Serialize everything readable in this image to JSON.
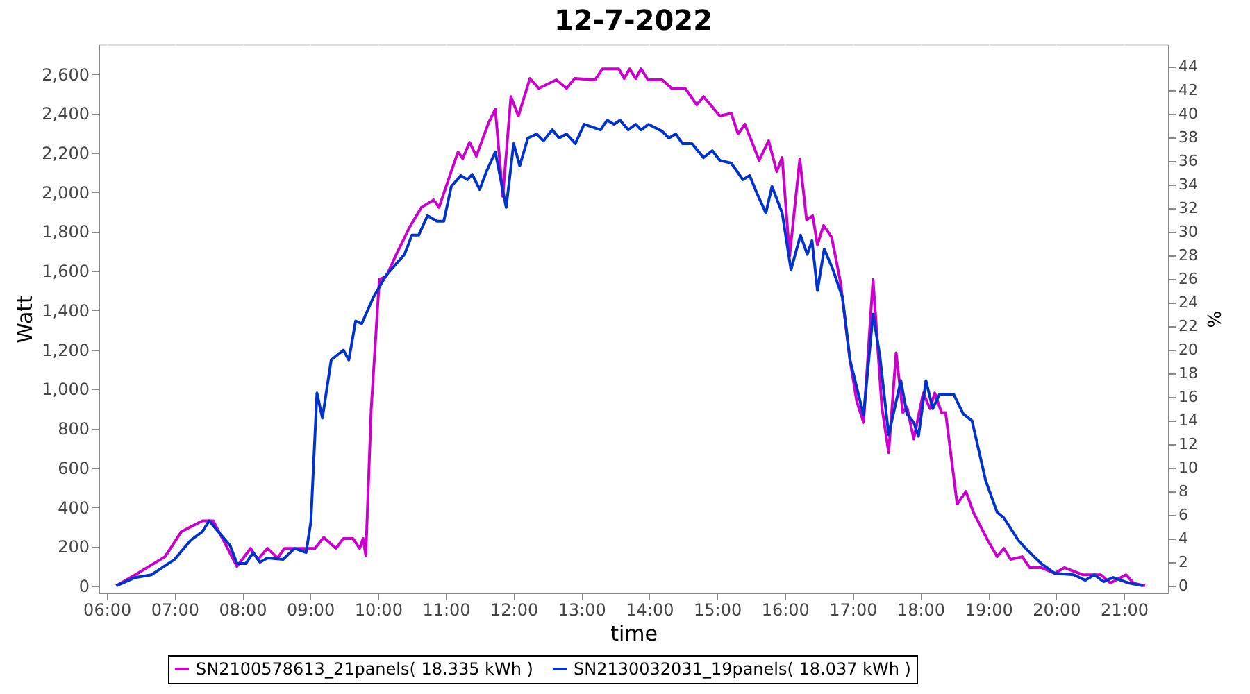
{
  "chart_data": {
    "type": "line",
    "title": "12-7-2022",
    "xlabel": "time",
    "ylabel": "Watt",
    "y2label": "%",
    "xlim": [
      5.88,
      21.65
    ],
    "xticks": [
      {
        "value": 6,
        "label": "06:00"
      },
      {
        "value": 7,
        "label": "07:00"
      },
      {
        "value": 8,
        "label": "08:00"
      },
      {
        "value": 9,
        "label": "09:00"
      },
      {
        "value": 10,
        "label": "10:00"
      },
      {
        "value": 11,
        "label": "11:00"
      },
      {
        "value": 12,
        "label": "12:00"
      },
      {
        "value": 13,
        "label": "13:00"
      },
      {
        "value": 14,
        "label": "14:00"
      },
      {
        "value": 15,
        "label": "15:00"
      },
      {
        "value": 16,
        "label": "16:00"
      },
      {
        "value": 17,
        "label": "17:00"
      },
      {
        "value": 18,
        "label": "18:00"
      },
      {
        "value": 19,
        "label": "19:00"
      },
      {
        "value": 20,
        "label": "20:00"
      },
      {
        "value": 21,
        "label": "21:00"
      }
    ],
    "ylim": [
      -35,
      2750
    ],
    "yticks": [
      0,
      200,
      400,
      600,
      800,
      {
        "value": 1000,
        "label": "1,000"
      },
      {
        "value": 1200,
        "label": "1,200"
      },
      {
        "value": 1400,
        "label": "1,400"
      },
      {
        "value": 1600,
        "label": "1,600"
      },
      {
        "value": 1800,
        "label": "1,800"
      },
      {
        "value": 2000,
        "label": "2,000"
      },
      {
        "value": 2200,
        "label": "2,200"
      },
      {
        "value": 2400,
        "label": "2,400"
      },
      {
        "value": 2600,
        "label": "2,600"
      }
    ],
    "y2lim": [
      -0.6,
      45.9
    ],
    "y2ticks": [
      0,
      2,
      4,
      6,
      8,
      10,
      12,
      14,
      16,
      18,
      20,
      22,
      24,
      26,
      28,
      30,
      32,
      34,
      36,
      38,
      40,
      42,
      44
    ],
    "grid": true,
    "legend": "bottom",
    "marker": "none",
    "line_style": "solid",
    "series": [
      {
        "name": "SN2100578613_21panels( 18.335 kWh )",
        "color": "#cc00cc",
        "x": [
          6.14,
          6.42,
          6.86,
          7.1,
          7.41,
          7.57,
          7.92,
          8.12,
          8.23,
          8.37,
          8.52,
          8.62,
          9.07,
          9.2,
          9.38,
          9.49,
          9.63,
          9.73,
          9.78,
          9.82,
          9.9,
          10.02,
          10.12,
          10.27,
          10.47,
          10.64,
          10.82,
          10.9,
          11.08,
          11.18,
          11.25,
          11.35,
          11.45,
          11.63,
          11.73,
          11.84,
          11.96,
          12.07,
          12.24,
          12.37,
          12.63,
          12.78,
          12.9,
          13.2,
          13.31,
          13.55,
          13.63,
          13.71,
          13.8,
          13.88,
          13.98,
          14.19,
          14.33,
          14.53,
          14.7,
          14.8,
          15.04,
          15.21,
          15.31,
          15.41,
          15.62,
          15.76,
          15.88,
          15.96,
          16.07,
          16.22,
          16.32,
          16.41,
          16.48,
          16.57,
          16.69,
          16.82,
          16.92,
          16.96,
          17.06,
          17.16,
          17.3,
          17.43,
          17.53,
          17.64,
          17.74,
          17.8,
          17.9,
          18.04,
          18.14,
          18.21,
          18.31,
          18.37,
          18.54,
          18.67,
          18.78,
          18.99,
          19.13,
          19.23,
          19.33,
          19.5,
          19.61,
          19.78,
          19.98,
          20.12,
          20.39,
          20.66,
          20.8,
          21.03,
          21.14,
          21.31
        ],
        "values": [
          0,
          56,
          148,
          275,
          330,
          330,
          99,
          190,
          134,
          190,
          141,
          190,
          190,
          246,
          190,
          240,
          240,
          190,
          240,
          155,
          900,
          1556,
          1570,
          1683,
          1824,
          1922,
          1960,
          1922,
          2105,
          2204,
          2170,
          2253,
          2182,
          2351,
          2422,
          1978,
          2485,
          2387,
          2577,
          2527,
          2570,
          2527,
          2577,
          2570,
          2626,
          2626,
          2577,
          2626,
          2577,
          2626,
          2570,
          2570,
          2527,
          2527,
          2443,
          2485,
          2387,
          2400,
          2295,
          2345,
          2161,
          2260,
          2105,
          2175,
          1675,
          2168,
          1859,
          1880,
          1732,
          1830,
          1770,
          1542,
          1260,
          1147,
          936,
          830,
          1556,
          908,
          676,
          1183,
          880,
          908,
          746,
          979,
          900,
          979,
          880,
          880,
          415,
          479,
          373,
          232,
          148,
          190,
          134,
          148,
          92,
          92,
          63,
          92,
          56,
          56,
          14,
          56,
          14,
          0
        ]
      },
      {
        "name": "SN2130032031_19panels( 18.037 kWh )",
        "color": "#0033cc",
        "x": [
          6.14,
          6.42,
          6.66,
          7.0,
          7.24,
          7.41,
          7.51,
          7.82,
          7.92,
          8.05,
          8.16,
          8.26,
          8.37,
          8.6,
          8.77,
          8.94,
          9.01,
          9.1,
          9.18,
          9.31,
          9.49,
          9.57,
          9.67,
          9.76,
          9.93,
          10.12,
          10.39,
          10.5,
          10.6,
          10.73,
          10.87,
          10.97,
          11.08,
          11.22,
          11.32,
          11.39,
          11.5,
          11.6,
          11.73,
          11.89,
          12.0,
          12.09,
          12.21,
          12.34,
          12.44,
          12.57,
          12.67,
          12.78,
          12.91,
          13.04,
          13.28,
          13.38,
          13.48,
          13.57,
          13.69,
          13.8,
          13.88,
          13.99,
          14.19,
          14.29,
          14.39,
          14.49,
          14.63,
          14.8,
          14.93,
          15.04,
          15.21,
          15.38,
          15.48,
          15.59,
          15.72,
          15.81,
          15.96,
          16.09,
          16.23,
          16.33,
          16.4,
          16.48,
          16.58,
          16.71,
          16.85,
          16.96,
          17.06,
          17.16,
          17.3,
          17.4,
          17.53,
          17.71,
          17.8,
          17.9,
          17.97,
          18.08,
          18.18,
          18.28,
          18.49,
          18.63,
          18.76,
          18.96,
          19.13,
          19.23,
          19.44,
          19.57,
          19.78,
          19.98,
          20.26,
          20.43,
          20.56,
          20.7,
          20.84,
          21.07,
          21.28
        ],
        "values": [
          0,
          42,
          56,
          134,
          232,
          275,
          330,
          204,
          113,
          113,
          169,
          120,
          141,
          134,
          190,
          169,
          324,
          979,
          852,
          1147,
          1197,
          1147,
          1345,
          1331,
          1464,
          1577,
          1683,
          1781,
          1781,
          1880,
          1852,
          1852,
          2028,
          2084,
          2063,
          2090,
          2013,
          2105,
          2204,
          1922,
          2246,
          2133,
          2274,
          2295,
          2260,
          2316,
          2274,
          2295,
          2246,
          2344,
          2316,
          2365,
          2344,
          2365,
          2316,
          2344,
          2316,
          2344,
          2309,
          2274,
          2295,
          2246,
          2246,
          2175,
          2210,
          2161,
          2147,
          2063,
          2084,
          1992,
          1894,
          2028,
          1894,
          1605,
          1781,
          1683,
          1753,
          1500,
          1711,
          1605,
          1464,
          1147,
          1007,
          866,
          1380,
          1169,
          767,
          1042,
          873,
          830,
          760,
          1042,
          900,
          972,
          972,
          873,
          838,
          535,
          373,
          345,
          232,
          183,
          113,
          63,
          56,
          28,
          56,
          21,
          42,
          14,
          0
        ]
      }
    ]
  }
}
